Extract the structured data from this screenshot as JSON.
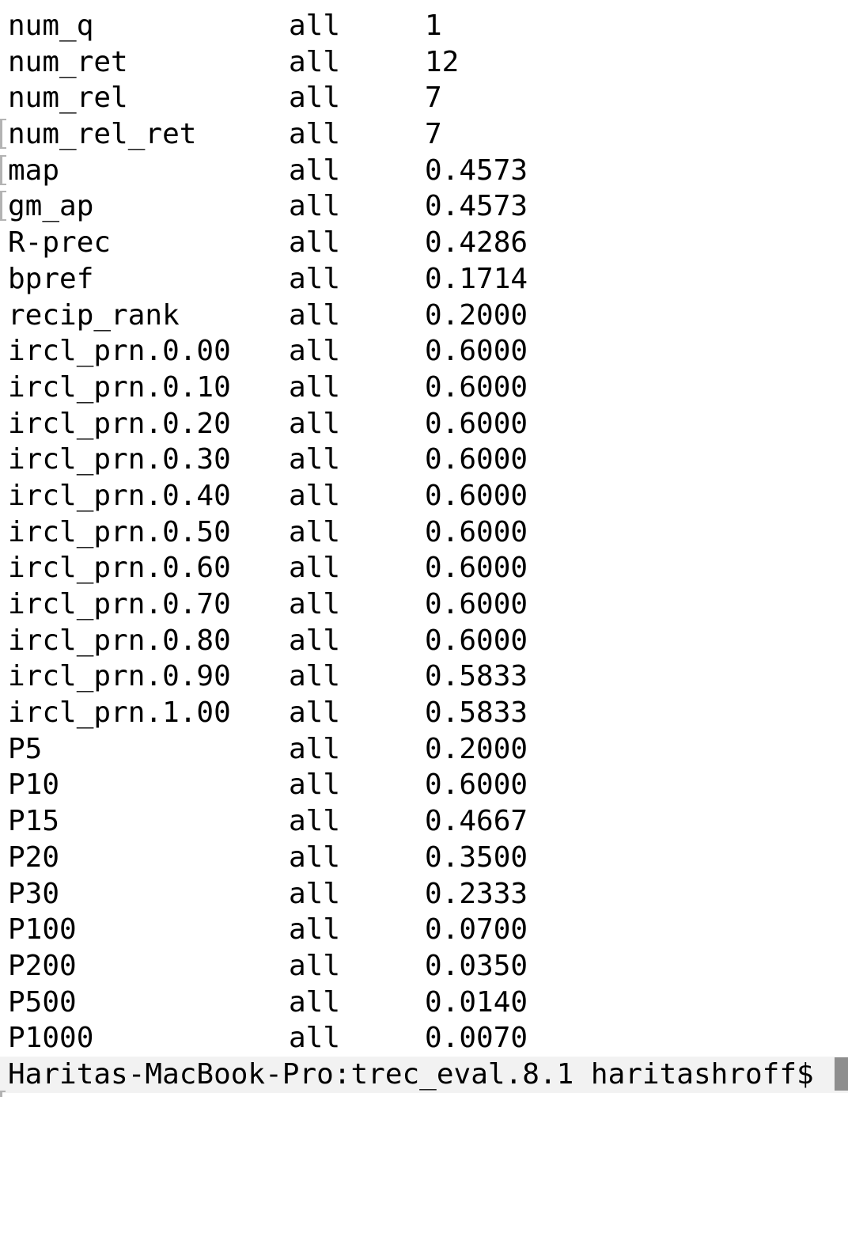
{
  "terminal": {
    "rows": [
      {
        "name": "num_q",
        "scope": "all",
        "value": "1"
      },
      {
        "name": "num_ret",
        "scope": "all",
        "value": "12"
      },
      {
        "name": "num_rel",
        "scope": "all",
        "value": "7"
      },
      {
        "name": "num_rel_ret",
        "scope": "all",
        "value": "7",
        "edge_artifact": true
      },
      {
        "name": "map",
        "scope": "all",
        "value": "0.4573",
        "edge_artifact": true
      },
      {
        "name": "gm_ap",
        "scope": "all",
        "value": "0.4573",
        "edge_artifact": true
      },
      {
        "name": "R-prec",
        "scope": "all",
        "value": "0.4286"
      },
      {
        "name": "bpref",
        "scope": "all",
        "value": "0.1714"
      },
      {
        "name": "recip_rank",
        "scope": "all",
        "value": "0.2000"
      },
      {
        "name": "ircl_prn.0.00",
        "scope": "all",
        "value": "0.6000"
      },
      {
        "name": "ircl_prn.0.10",
        "scope": "all",
        "value": "0.6000"
      },
      {
        "name": "ircl_prn.0.20",
        "scope": "all",
        "value": "0.6000"
      },
      {
        "name": "ircl_prn.0.30",
        "scope": "all",
        "value": "0.6000"
      },
      {
        "name": "ircl_prn.0.40",
        "scope": "all",
        "value": "0.6000"
      },
      {
        "name": "ircl_prn.0.50",
        "scope": "all",
        "value": "0.6000"
      },
      {
        "name": "ircl_prn.0.60",
        "scope": "all",
        "value": "0.6000"
      },
      {
        "name": "ircl_prn.0.70",
        "scope": "all",
        "value": "0.6000"
      },
      {
        "name": "ircl_prn.0.80",
        "scope": "all",
        "value": "0.6000"
      },
      {
        "name": "ircl_prn.0.90",
        "scope": "all",
        "value": "0.5833"
      },
      {
        "name": "ircl_prn.1.00",
        "scope": "all",
        "value": "0.5833"
      },
      {
        "name": "P5",
        "scope": "all",
        "value": "0.2000"
      },
      {
        "name": "P10",
        "scope": "all",
        "value": "0.6000"
      },
      {
        "name": "P15",
        "scope": "all",
        "value": "0.4667"
      },
      {
        "name": "P20",
        "scope": "all",
        "value": "0.3500"
      },
      {
        "name": "P30",
        "scope": "all",
        "value": "0.2333"
      },
      {
        "name": "P100",
        "scope": "all",
        "value": "0.0700"
      },
      {
        "name": "P200",
        "scope": "all",
        "value": "0.0350"
      },
      {
        "name": "P500",
        "scope": "all",
        "value": "0.0140"
      },
      {
        "name": "P1000",
        "scope": "all",
        "value": "0.0070"
      }
    ],
    "prompt": "Haritas-MacBook-Pro:trec_eval.8.1 haritashroff$",
    "cursor_style": "block",
    "colors": {
      "background": "#ffffff",
      "text": "#000000",
      "prompt_line_background": "#f2f2f2",
      "cursor": "#8e8e8e",
      "artifact_gray": "#b3b3b3"
    }
  }
}
